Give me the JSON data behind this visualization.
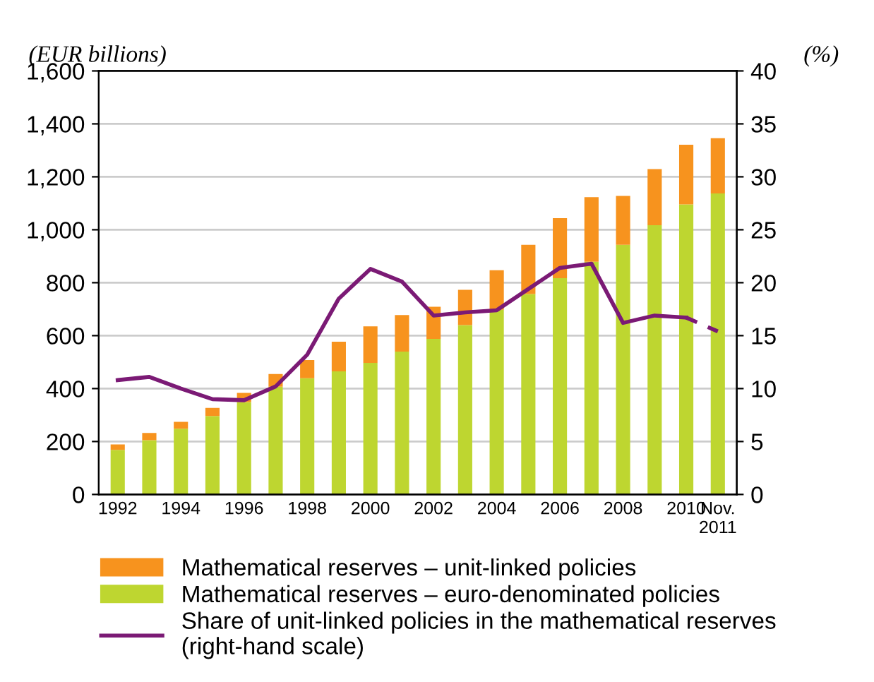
{
  "chart_data": {
    "type": "bar",
    "stacked": true,
    "ylabel": "(EUR billions)",
    "y2label": "(%)",
    "categories": [
      "1992",
      null,
      "1994",
      null,
      "1996",
      null,
      "1998",
      null,
      "2000",
      null,
      "2002",
      null,
      "2004",
      null,
      "2006",
      null,
      "2008",
      null,
      "2010",
      "Nov.\n2011"
    ],
    "series": [
      {
        "name": "Mathematical reserves – euro-denominated policies",
        "color": "#bed630",
        "values": [
          168,
          205,
          248,
          296,
          349,
          407,
          439,
          465,
          497,
          540,
          588,
          640,
          698,
          757,
          817,
          879,
          943,
          1017,
          1096,
          1137
        ]
      },
      {
        "name": "Mathematical reserves – unit-linked policies",
        "color": "#f7931e",
        "values": [
          21,
          27,
          26,
          31,
          35,
          48,
          69,
          112,
          138,
          138,
          121,
          133,
          149,
          186,
          227,
          244,
          185,
          212,
          225,
          209
        ]
      },
      {
        "name": "Share of unit-linked policies in the mathematical reserves\n(right-hand scale)",
        "color": "#7b1a75",
        "type": "line",
        "axis": "y2",
        "line_style": "solid",
        "values": [
          10.8,
          11.1,
          10.0,
          9.0,
          8.9,
          10.2,
          13.2,
          18.5,
          21.3,
          20.1,
          16.9,
          17.2,
          17.4,
          19.4,
          21.4,
          21.8,
          16.2,
          16.9,
          16.7,
          null
        ]
      },
      {
        "color": "#7b1a75",
        "type": "line",
        "axis": "y2",
        "line_style": "dashed",
        "values": [
          null,
          null,
          null,
          null,
          null,
          null,
          null,
          null,
          null,
          null,
          null,
          null,
          null,
          null,
          null,
          null,
          null,
          null,
          16.7,
          15.4
        ]
      }
    ],
    "ylim": [
      0,
      1600
    ],
    "yticks": [
      0,
      200,
      400,
      600,
      800,
      {
        "value": 1000,
        "label": "1,000"
      },
      {
        "value": 1200,
        "label": "1,200"
      },
      {
        "value": 1400,
        "label": "1,400"
      },
      {
        "value": 1600,
        "label": "1,600"
      }
    ],
    "y2lim": [
      0,
      40
    ],
    "y2ticks": [
      0,
      5,
      10,
      15,
      20,
      25,
      30,
      35,
      40
    ],
    "grid": "y",
    "legend": "bottom",
    "marker": "none"
  }
}
